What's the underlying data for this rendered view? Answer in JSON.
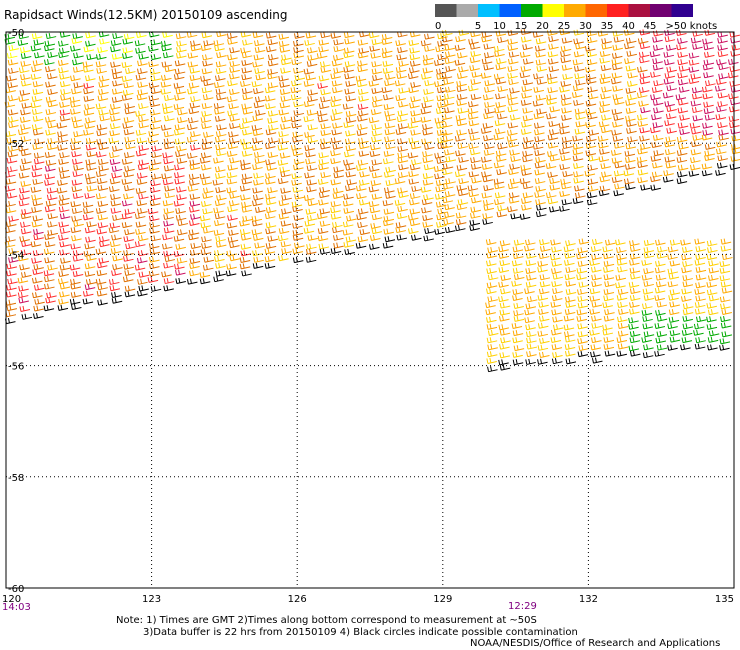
{
  "title": "Rapidsact Winds(12.5KM) 20150109 ascending",
  "legend": {
    "ticks": [
      "0",
      "5",
      "10",
      "15",
      "20",
      "25",
      "30",
      "35",
      "40",
      "45",
      ">50 knots"
    ],
    "colors": [
      "#555555",
      "#aaaaaa",
      "#00bfff",
      "#0060ff",
      "#00aa00",
      "#ffff00",
      "#ffaa00",
      "#ff6600",
      "#ff2020",
      "#aa1040",
      "#700070",
      "#300090"
    ]
  },
  "map": {
    "lat_labels": [
      "-50",
      "-52",
      "-54",
      "-56",
      "-58",
      "-60"
    ],
    "lon_labels": [
      "120",
      "123",
      "126",
      "129",
      "132",
      "135"
    ],
    "lon_range": [
      120,
      135
    ],
    "lat_range": [
      -60,
      -50
    ],
    "times": [
      "14:03",
      "12:29"
    ]
  },
  "notes": [
    "Note: 1) Times are GMT 2)Times along bottom correspond to measurement at ~50S",
    "3)Data buffer is 22 hrs from 20150109 4) Black circles indicate possible contamination",
    "NOAA/NESDIS/Office of Research and Applications"
  ]
}
